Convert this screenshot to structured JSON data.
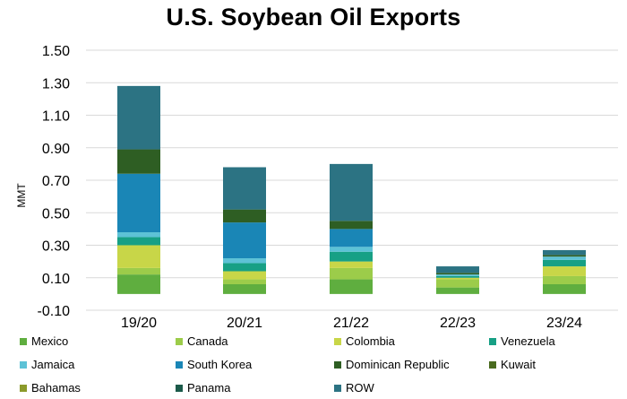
{
  "chart_data": {
    "type": "bar",
    "stacked": true,
    "title": "U.S. Soybean Oil Exports",
    "xlabel": "",
    "ylabel": "MMT",
    "ylim": [
      -0.1,
      1.5
    ],
    "yticks": [
      "1.50",
      "1.30",
      "1.10",
      "0.90",
      "0.70",
      "0.50",
      "0.30",
      "0.10",
      "-0.10"
    ],
    "ytick_values": [
      1.5,
      1.3,
      1.1,
      0.9,
      0.7,
      0.5,
      0.3,
      0.1,
      -0.1
    ],
    "grid": true,
    "legend_position": "bottom",
    "categories": [
      "19/20",
      "20/21",
      "21/22",
      "22/23",
      "23/24"
    ],
    "series": [
      {
        "name": "Mexico",
        "color": "#5fae3f",
        "values": [
          0.12,
          0.06,
          0.09,
          0.04,
          0.06
        ]
      },
      {
        "name": "Canada",
        "color": "#9ccc4a",
        "values": [
          0.04,
          0.03,
          0.07,
          0.05,
          0.05
        ]
      },
      {
        "name": "Colombia",
        "color": "#c8d648",
        "values": [
          0.14,
          0.05,
          0.04,
          0.01,
          0.06
        ]
      },
      {
        "name": "Venezuela",
        "color": "#17a085",
        "values": [
          0.05,
          0.05,
          0.06,
          0.01,
          0.04
        ]
      },
      {
        "name": "Jamaica",
        "color": "#5dc2d6",
        "values": [
          0.03,
          0.03,
          0.03,
          0.01,
          0.02
        ]
      },
      {
        "name": "South Korea",
        "color": "#1a86b6",
        "values": [
          0.36,
          0.22,
          0.11,
          0.0,
          0.0
        ]
      },
      {
        "name": "Dominican Republic",
        "color": "#2e5e23",
        "values": [
          0.15,
          0.08,
          0.05,
          0.01,
          0.01
        ]
      },
      {
        "name": "Kuwait",
        "color": "#4a6b1f",
        "values": [
          0.0,
          0.0,
          0.0,
          0.0,
          0.0
        ]
      },
      {
        "name": "Bahamas",
        "color": "#8b9a2b",
        "values": [
          0.0,
          0.0,
          0.0,
          0.0,
          0.0
        ]
      },
      {
        "name": "Panama",
        "color": "#1b5a4a",
        "values": [
          0.0,
          0.0,
          0.0,
          0.0,
          0.0
        ]
      },
      {
        "name": "ROW",
        "color": "#2c7383",
        "values": [
          0.39,
          0.26,
          0.35,
          0.04,
          0.03
        ]
      }
    ]
  }
}
